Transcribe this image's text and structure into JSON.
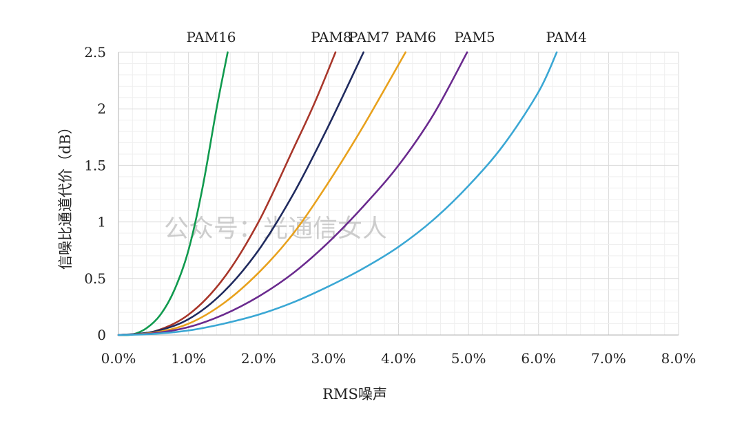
{
  "watermark": "公众号：光通信女人",
  "chart_data": {
    "type": "line",
    "title": "",
    "xlabel": "RMS噪声",
    "ylabel": "信噪比通道代价（dB）",
    "xlim": [
      0,
      8
    ],
    "ylim": [
      0,
      2.5
    ],
    "x_unit": "%",
    "x_ticks": [
      0,
      1,
      2,
      3,
      4,
      5,
      6,
      7,
      8
    ],
    "x_tick_labels": [
      "0.0%",
      "1.0%",
      "2.0%",
      "3.0%",
      "4.0%",
      "5.0%",
      "6.0%",
      "7.0%",
      "8.0%"
    ],
    "y_ticks": [
      0,
      0.5,
      1,
      1.5,
      2,
      2.5
    ],
    "y_tick_labels": [
      "0",
      "0.5",
      "1",
      "1.5",
      "2",
      "2.5"
    ],
    "grid": true,
    "legend": "series labels at top of curves",
    "series": [
      {
        "name": "PAM16",
        "color": "#109a4e",
        "x": [
          0,
          0.2,
          0.4,
          0.6,
          0.8,
          1.0,
          1.2,
          1.4,
          1.56
        ],
        "values": [
          0,
          0.005,
          0.06,
          0.18,
          0.4,
          0.75,
          1.3,
          2.0,
          2.5
        ]
      },
      {
        "name": "PAM8",
        "color": "#a8362a",
        "x": [
          0,
          0.5,
          1.0,
          1.5,
          2.0,
          2.5,
          2.8,
          3.1
        ],
        "values": [
          0,
          0.03,
          0.18,
          0.5,
          1.0,
          1.65,
          2.05,
          2.5
        ]
      },
      {
        "name": "PAM7",
        "color": "#1f2a5e",
        "x": [
          0,
          0.5,
          1.0,
          1.5,
          2.0,
          2.5,
          3.0,
          3.5
        ],
        "values": [
          0,
          0.03,
          0.14,
          0.38,
          0.75,
          1.25,
          1.85,
          2.5
        ]
      },
      {
        "name": "PAM6",
        "color": "#e8a11c",
        "x": [
          0,
          0.5,
          1.0,
          1.5,
          2.0,
          2.5,
          3.0,
          3.5,
          4.1
        ],
        "values": [
          0,
          0.02,
          0.1,
          0.28,
          0.55,
          0.9,
          1.35,
          1.85,
          2.5
        ]
      },
      {
        "name": "PAM5",
        "color": "#6a2a8e",
        "x": [
          0,
          0.5,
          1.0,
          1.5,
          2.0,
          2.5,
          3.0,
          3.5,
          4.0,
          4.5,
          4.98
        ],
        "values": [
          0,
          0.015,
          0.07,
          0.18,
          0.34,
          0.55,
          0.82,
          1.14,
          1.5,
          1.95,
          2.5
        ]
      },
      {
        "name": "PAM4",
        "color": "#3aa7d4",
        "x": [
          0,
          0.5,
          1.0,
          1.5,
          2.0,
          2.5,
          3.0,
          3.5,
          4.0,
          4.5,
          5.0,
          5.5,
          6.0,
          6.26
        ],
        "values": [
          0,
          0.01,
          0.04,
          0.1,
          0.18,
          0.29,
          0.43,
          0.59,
          0.78,
          1.02,
          1.32,
          1.68,
          2.15,
          2.5
        ]
      }
    ]
  }
}
